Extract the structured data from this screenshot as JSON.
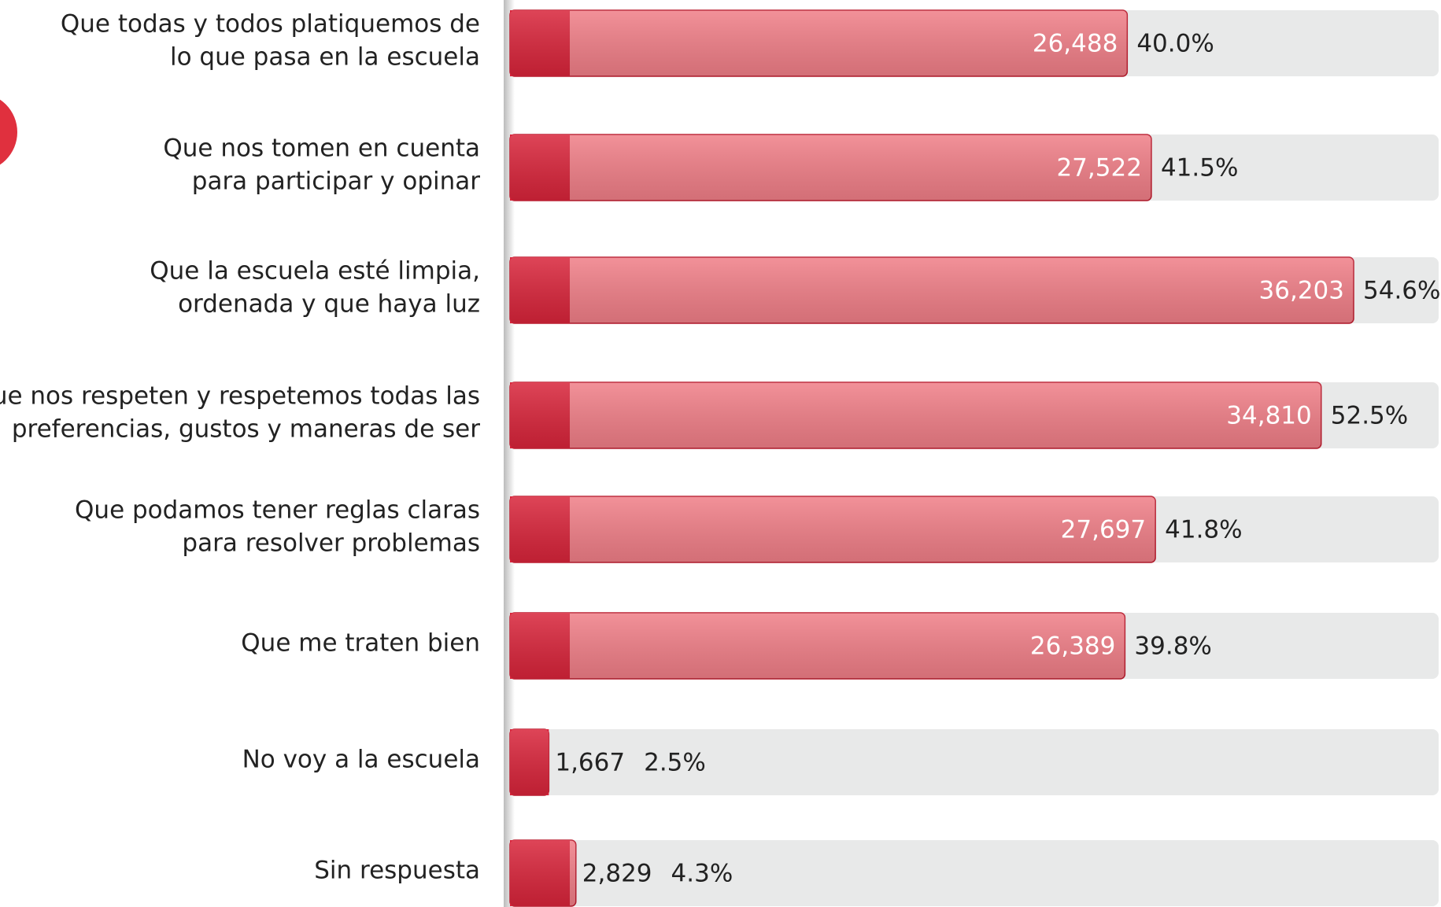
{
  "chart_data": {
    "type": "bar",
    "orientation": "horizontal",
    "categories": [
      [
        "Que todas y todos platiquemos de",
        "lo que pasa en la escuela"
      ],
      [
        "Que nos tomen en cuenta",
        "para participar y opinar"
      ],
      [
        "Que la escuela esté limpia,",
        "ordenada y que haya luz"
      ],
      [
        "Que nos respeten y respetemos todas las",
        "preferencias, gustos y maneras de ser"
      ],
      [
        "Que podamos tener reglas claras",
        "para resolver problemas"
      ],
      [
        "Que me traten bien"
      ],
      [
        "No voy a la escuela"
      ],
      [
        "Sin respuesta"
      ]
    ],
    "values": [
      26488,
      27522,
      36203,
      34810,
      27697,
      26389,
      1667,
      2829
    ],
    "value_labels": [
      "26,488",
      "27,522",
      "36,203",
      "34,810",
      "27,697",
      "26,389",
      "1,667",
      "2,829"
    ],
    "percentages": [
      40.0,
      41.5,
      54.6,
      52.5,
      41.8,
      39.8,
      2.5,
      4.3
    ],
    "percentage_labels": [
      "40.0%",
      "41.5%",
      "54.6%",
      "52.5%",
      "41.8%",
      "39.8%",
      "2.5%",
      "4.3%"
    ],
    "color": "#f07e87",
    "accent_color": "#d8243a",
    "track_color": "#e8e9e9"
  }
}
